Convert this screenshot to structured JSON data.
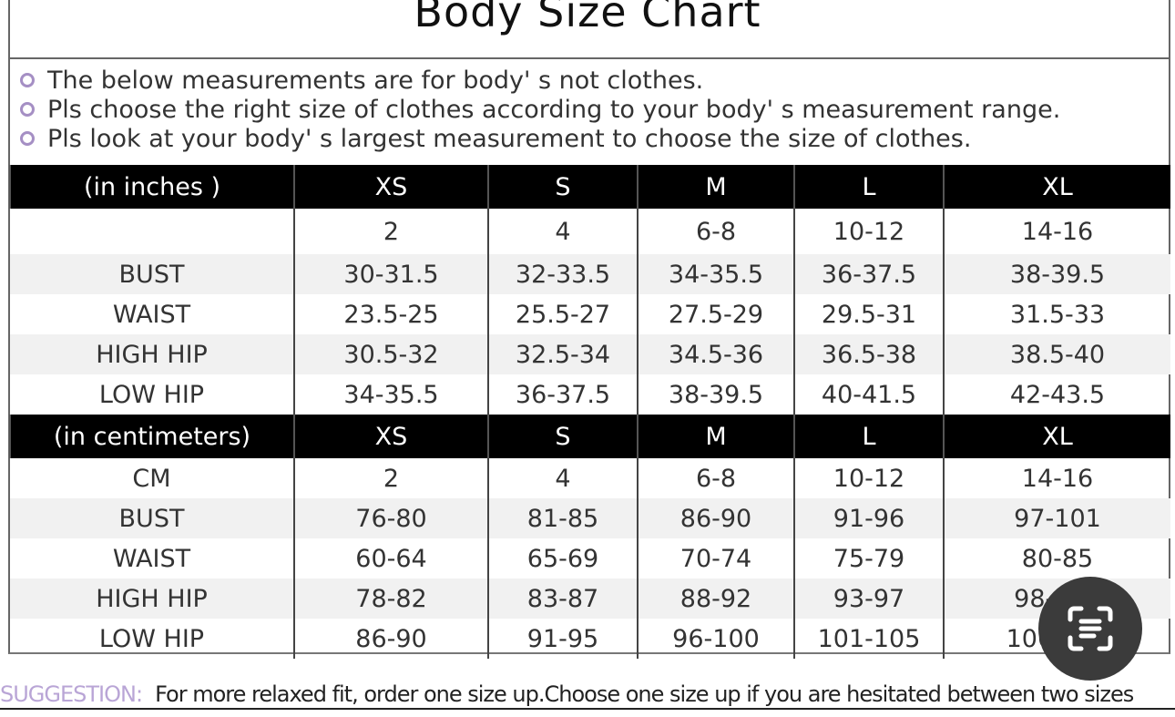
{
  "title": "Body Size Chart",
  "notes": [
    "The below measurements are for  body' s not clothes.",
    "Pls choose the right size of clothes according to your body' s  measurement range.",
    "Pls look  at your body' s  largest measurement to choose the size of clothes."
  ],
  "inches": {
    "header": [
      "(in  inches )",
      "XS",
      "S",
      "M",
      "L",
      "XL"
    ],
    "rows": [
      [
        "",
        "2",
        "4",
        "6-8",
        "10-12",
        "14-16"
      ],
      [
        "BUST",
        "30-31.5",
        "32-33.5",
        "34-35.5",
        "36-37.5",
        "38-39.5"
      ],
      [
        "WAIST",
        "23.5-25",
        "25.5-27",
        "27.5-29",
        "29.5-31",
        "31.5-33"
      ],
      [
        "HIGH HIP",
        "30.5-32",
        "32.5-34",
        "34.5-36",
        "36.5-38",
        "38.5-40"
      ],
      [
        "LOW HIP",
        "34-35.5",
        "36-37.5",
        "38-39.5",
        "40-41.5",
        "42-43.5"
      ]
    ]
  },
  "centimeters": {
    "header": [
      "(in centimeters)",
      "XS",
      "S",
      "M",
      "L",
      "XL"
    ],
    "rows": [
      [
        "CM",
        "2",
        "4",
        "6-8",
        "10-12",
        "14-16"
      ],
      [
        "BUST",
        "76-80",
        "81-85",
        "86-90",
        "91-96",
        "97-101"
      ],
      [
        "WAIST",
        "60-64",
        "65-69",
        "70-74",
        "75-79",
        "80-85"
      ],
      [
        "HIGH HIP",
        "78-82",
        "83-87",
        "88-92",
        "93-97",
        "98-102"
      ],
      [
        "LOW HIP",
        "86-90",
        "91-95",
        "96-100",
        "101-105",
        "106-110"
      ]
    ]
  },
  "suggestion": {
    "label": "SUGGESTION:",
    "text": "For more relaxed fit, order one size up.Choose one size up if you are hesitated between two sizes"
  },
  "overlay": {
    "icon": "live-text-scan-icon"
  },
  "colors": {
    "header_bg": "#000000",
    "bullet": "#a58fc4",
    "suggestion_label": "#b9a5d6"
  }
}
